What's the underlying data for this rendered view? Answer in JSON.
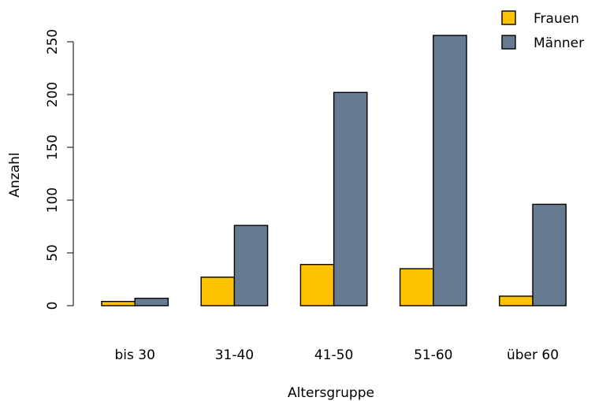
{
  "chart_data": {
    "type": "bar",
    "categories": [
      "bis 30",
      "31-40",
      "41-50",
      "51-60",
      "über 60"
    ],
    "series": [
      {
        "name": "Frauen",
        "values": [
          4,
          27,
          39,
          35,
          9
        ],
        "color": "#FFC200"
      },
      {
        "name": "Männer",
        "values": [
          7,
          76,
          202,
          256,
          96
        ],
        "color": "#667B92"
      }
    ],
    "xlabel": "Altersgruppe",
    "ylabel": "Anzahl",
    "ylim": [
      0,
      250
    ],
    "yticks": [
      "0",
      "50",
      "100",
      "150",
      "200",
      "250"
    ],
    "grid": false,
    "legend_position": "top-right"
  }
}
